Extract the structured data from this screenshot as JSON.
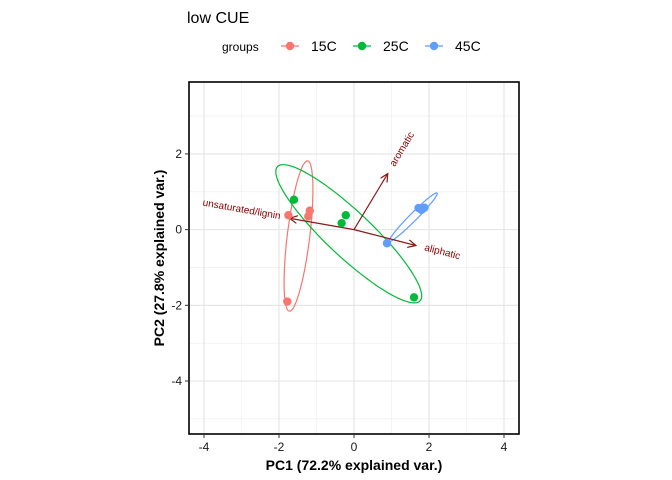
{
  "chart_data": {
    "type": "scatter",
    "title": "low CUE",
    "xlabel": "PC1 (72.2% explained var.)",
    "ylabel": "PC2 (27.8% explained var.)",
    "xlim": [
      -4.4,
      4.4
    ],
    "ylim": [
      -5.4,
      3.9
    ],
    "x_ticks": [
      -4,
      -2,
      0,
      2,
      4
    ],
    "y_ticks": [
      -4,
      -2,
      0,
      2
    ],
    "grid": true,
    "legend": {
      "title": "groups",
      "placement": "top",
      "entries": [
        "15C",
        "25C",
        "45C"
      ]
    },
    "colors": {
      "15C": "#F8766D",
      "25C": "#00BA38",
      "45C": "#619CFF",
      "arrows": "#8B1A1A",
      "arrow_labels": "#8B0000"
    },
    "series": [
      {
        "name": "15C",
        "points": [
          [
            -1.75,
            0.38
          ],
          [
            -1.18,
            0.5
          ],
          [
            -1.22,
            0.35
          ],
          [
            -1.78,
            -1.9
          ]
        ],
        "ellipse": {
          "center": [
            -1.48,
            -0.17
          ],
          "semi_major": 2.0,
          "semi_minor": 0.3,
          "angle_deg": 83
        }
      },
      {
        "name": "25C",
        "points": [
          [
            -1.6,
            0.79
          ],
          [
            -0.22,
            0.38
          ],
          [
            -0.33,
            0.17
          ],
          [
            1.6,
            -1.79
          ]
        ],
        "ellipse": {
          "center": [
            -0.14,
            -0.11
          ],
          "semi_major": 2.6,
          "semi_minor": 0.6,
          "angle_deg": -43
        }
      },
      {
        "name": "45C",
        "points": [
          [
            0.88,
            -0.36
          ],
          [
            1.72,
            0.57
          ],
          [
            1.83,
            0.55
          ],
          [
            1.88,
            0.58
          ],
          [
            1.8,
            0.52
          ]
        ],
        "ellipse": {
          "center": [
            1.58,
            0.33
          ],
          "semi_major": 0.9,
          "semi_minor": 0.1,
          "angle_deg": 45
        }
      }
    ],
    "loadings": [
      {
        "label": "aromatic",
        "x": 0.9,
        "y": 1.48
      },
      {
        "label": "aliphatic",
        "x": 1.65,
        "y": -0.42
      },
      {
        "label": "unsaturated/lignin",
        "x": -1.72,
        "y": 0.3
      }
    ]
  }
}
